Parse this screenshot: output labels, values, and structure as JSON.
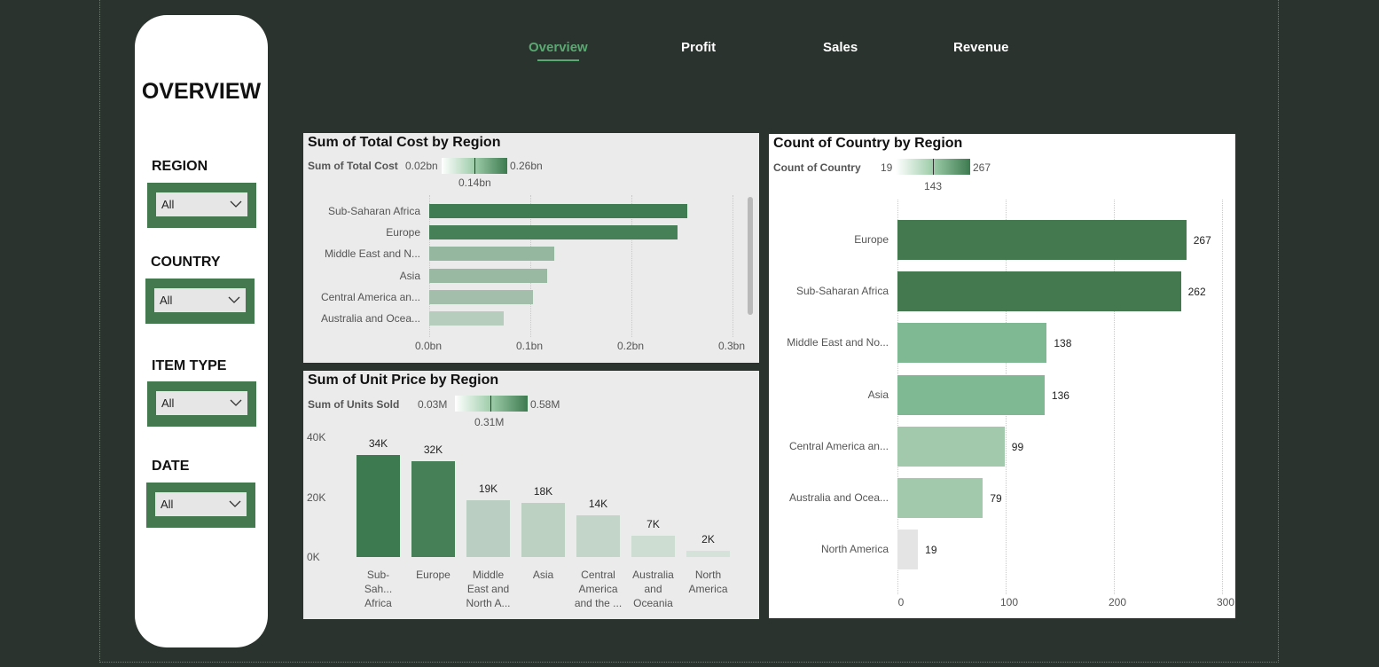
{
  "tabs": [
    "Overview",
    "Profit",
    "Sales",
    "Revenue"
  ],
  "sidebar": {
    "title": "OVERVIEW",
    "filters": [
      {
        "label": "REGION",
        "value": "All"
      },
      {
        "label": "COUNTRY",
        "value": "All"
      },
      {
        "label": "ITEM TYPE",
        "value": "All"
      },
      {
        "label": "DATE",
        "value": "All"
      }
    ]
  },
  "colors": {
    "background": "#2a332d",
    "accent": "#5aa972",
    "bar_dark": "#44784f",
    "bar_light": "#c2dccb"
  },
  "cost_chart": {
    "title": "Sum of Total Cost by Region",
    "legend_label": "Sum of Total Cost",
    "legend_min": "0.02bn",
    "legend_mid": "0.14bn",
    "legend_max": "0.26bn",
    "categories": [
      "Sub-Saharan Africa",
      "Europe",
      "Middle East and N...",
      "Asia",
      "Central America an...",
      "Australia and Ocea..."
    ],
    "ticks": [
      "0.0bn",
      "0.1bn",
      "0.2bn",
      "0.3bn"
    ]
  },
  "unit_chart": {
    "title": "Sum of Unit Price by Region",
    "legend_label": "Sum of Units Sold",
    "legend_min": "0.03M",
    "legend_mid": "0.31M",
    "legend_max": "0.58M",
    "categories": [
      [
        "Sub-Sah...",
        "Africa"
      ],
      [
        "Europe"
      ],
      [
        "Middle",
        "East and",
        "North A..."
      ],
      [
        "Asia"
      ],
      [
        "Central",
        "America",
        "and the ..."
      ],
      [
        "Australia",
        "and",
        "Oceania"
      ],
      [
        "North",
        "America"
      ]
    ],
    "data_labels": [
      "34K",
      "32K",
      "19K",
      "18K",
      "14K",
      "7K",
      "2K"
    ],
    "ticks": [
      "40K",
      "20K",
      "0K"
    ]
  },
  "country_chart": {
    "title": "Count of Country by Region",
    "legend_label": "Count of Country",
    "legend_min": "19",
    "legend_mid": "143",
    "legend_max": "267",
    "categories": [
      "Europe",
      "Sub-Saharan Africa",
      "Middle East and No...",
      "Asia",
      "Central America an...",
      "Australia and Ocea...",
      "North America"
    ],
    "data_labels": [
      "267",
      "262",
      "138",
      "136",
      "99",
      "79",
      "19"
    ],
    "ticks": [
      "0",
      "100",
      "200",
      "300"
    ]
  },
  "chart_data": [
    {
      "type": "bar",
      "orientation": "horizontal",
      "title": "Sum of Total Cost by Region",
      "categories": [
        "Sub-Saharan Africa",
        "Europe",
        "Middle East and N...",
        "Asia",
        "Central America an...",
        "Australia and Ocea..."
      ],
      "values": [
        0.255,
        0.246,
        0.124,
        0.117,
        0.103,
        0.074
      ],
      "unit": "bn",
      "xlim": [
        0,
        0.3
      ],
      "legend_label": "Sum of Total Cost",
      "legend_range": [
        0.02,
        0.14,
        0.26
      ]
    },
    {
      "type": "bar",
      "orientation": "vertical",
      "title": "Sum of Unit Price by Region",
      "categories": [
        "Sub-Saharan Africa",
        "Europe",
        "Middle East and North A...",
        "Asia",
        "Central America and the ...",
        "Australia and Oceania",
        "North America"
      ],
      "values": [
        34000,
        32000,
        19000,
        18000,
        14000,
        7000,
        2000
      ],
      "ylim": [
        0,
        40000
      ],
      "legend_label": "Sum of Units Sold",
      "legend_range": [
        0.03,
        0.31,
        0.58
      ]
    },
    {
      "type": "bar",
      "orientation": "horizontal",
      "title": "Count of Country by Region",
      "categories": [
        "Europe",
        "Sub-Saharan Africa",
        "Middle East and No...",
        "Asia",
        "Central America an...",
        "Australia and Ocea...",
        "North America"
      ],
      "values": [
        267,
        262,
        138,
        136,
        99,
        79,
        19
      ],
      "xlim": [
        0,
        300
      ],
      "legend_label": "Count of Country",
      "legend_range": [
        19,
        143,
        267
      ]
    }
  ]
}
